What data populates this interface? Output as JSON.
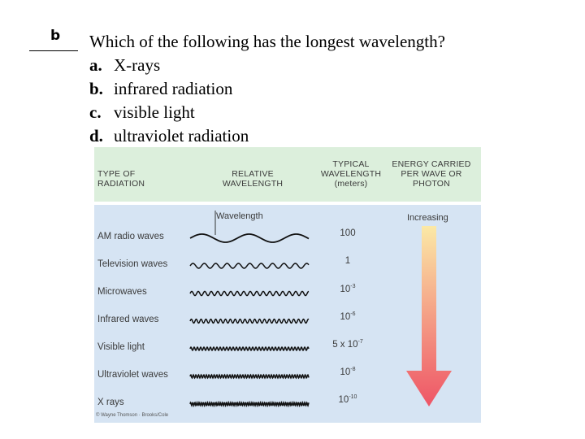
{
  "answer": {
    "letter": "b"
  },
  "question": {
    "stem": "Which of the following has the longest wavelength?",
    "options": [
      {
        "label": "a.",
        "text": "X-rays"
      },
      {
        "label": "b.",
        "text": "infrared radiation"
      },
      {
        "label": "c.",
        "text": "visible light"
      },
      {
        "label": "d.",
        "text": "ultraviolet radiation"
      }
    ]
  },
  "figure": {
    "headers": {
      "type": [
        "TYPE OF",
        "RADIATION"
      ],
      "relative": [
        "RELATIVE",
        "WAVELENGTH"
      ],
      "typical": [
        "TYPICAL",
        "WAVELENGTH",
        "(meters)"
      ],
      "energy": [
        "ENERGY CARRIED",
        "PER WAVE OR",
        "PHOTON"
      ]
    },
    "wavelength_label": "Wavelength",
    "increasing_label": "Increasing",
    "rows": [
      {
        "name": "AM radio waves",
        "base": "100",
        "exp": ""
      },
      {
        "name": "Television waves",
        "base": "1",
        "exp": ""
      },
      {
        "name": "Microwaves",
        "base": "10",
        "exp": "-3"
      },
      {
        "name": "Infrared waves",
        "base": "10",
        "exp": "-6"
      },
      {
        "name": "Visible light",
        "base": "5 x 10",
        "exp": "-7"
      },
      {
        "name": "Ultraviolet waves",
        "base": "10",
        "exp": "-8"
      },
      {
        "name": "X rays",
        "base": "10",
        "exp": "-10"
      }
    ],
    "credit": "© Wayne Thomson · Brooks/Cole",
    "colors": {
      "arrow_top": "#fbe9a6",
      "arrow_bottom": "#ee5566",
      "header_bg": "#dcefdc",
      "body_bg": "#d6e4f3"
    }
  }
}
